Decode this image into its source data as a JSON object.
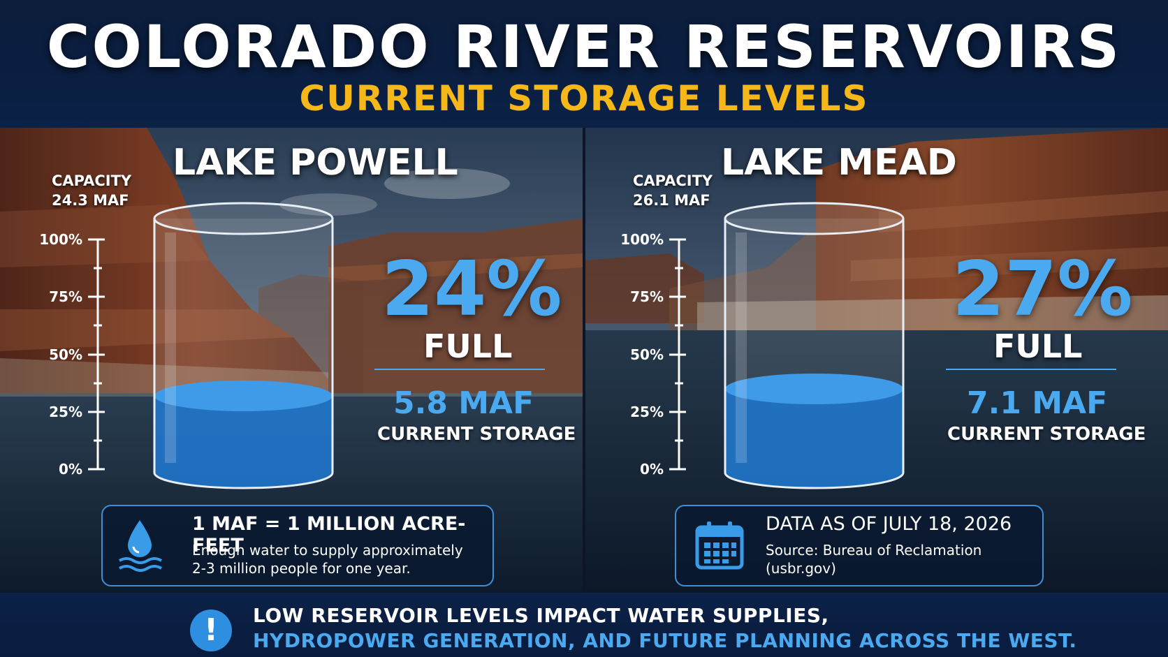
{
  "header": {
    "title": "COLORADO RIVER RESERVOIRS",
    "subtitle": "CURRENT STORAGE LEVELS"
  },
  "scale_labels": [
    "100%",
    "75%",
    "50%",
    "25%",
    "0%"
  ],
  "reservoirs": [
    {
      "name": "LAKE POWELL",
      "capacity_label": "CAPACITY",
      "capacity_value": "24.3 MAF",
      "percent": "24%",
      "percent_value": 24,
      "full_label": "FULL",
      "storage_value": "5.8 MAF",
      "storage_label": "CURRENT STORAGE"
    },
    {
      "name": "LAKE MEAD",
      "capacity_label": "CAPACITY",
      "capacity_value": "26.1 MAF",
      "percent": "27%",
      "percent_value": 27,
      "full_label": "FULL",
      "storage_value": "7.1 MAF",
      "storage_label": "CURRENT STORAGE"
    }
  ],
  "info_boxes": {
    "maf": {
      "icon": "water-drop-icon",
      "title": "1 MAF = 1 MILLION ACRE-FEET",
      "line1": "Enough water to supply approximately",
      "line2": "2-3 million people for one year."
    },
    "date": {
      "icon": "calendar-icon",
      "title": "DATA AS OF JULY 18, 2026",
      "line1": "Source: Bureau of Reclamation",
      "line2": "(usbr.gov)"
    }
  },
  "footer": {
    "icon": "alert-icon",
    "line1": "LOW RESERVOIR LEVELS IMPACT WATER SUPPLIES,",
    "line2": "HYDROPOWER GENERATION, AND FUTURE PLANNING ACROSS THE WEST."
  },
  "colors": {
    "accent_blue": "#4aa9ef",
    "accent_yellow": "#f5b818",
    "water": "#1f74c8",
    "navy": "#0a1f42"
  }
}
